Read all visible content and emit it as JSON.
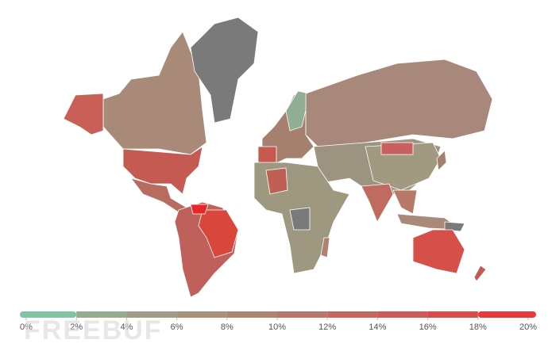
{
  "legend": {
    "ticks": [
      {
        "value": 0,
        "label": "0%"
      },
      {
        "value": 2,
        "label": "2%"
      },
      {
        "value": 4,
        "label": "4%"
      },
      {
        "value": 6,
        "label": "6%"
      },
      {
        "value": 8,
        "label": "8%"
      },
      {
        "value": 10,
        "label": "10%"
      },
      {
        "value": 12,
        "label": "12%"
      },
      {
        "value": 14,
        "label": "14%"
      },
      {
        "value": 16,
        "label": "16%"
      },
      {
        "value": 18,
        "label": "18%"
      },
      {
        "value": 20,
        "label": "20%"
      }
    ],
    "colors": [
      "#82c4a0",
      "#94ab8e",
      "#9e9c84",
      "#a7917c",
      "#b08474",
      "#b9766c",
      "#c46862",
      "#cf5a56",
      "#da4a48",
      "#e5393a"
    ]
  },
  "watermark": "FREEBUF"
}
